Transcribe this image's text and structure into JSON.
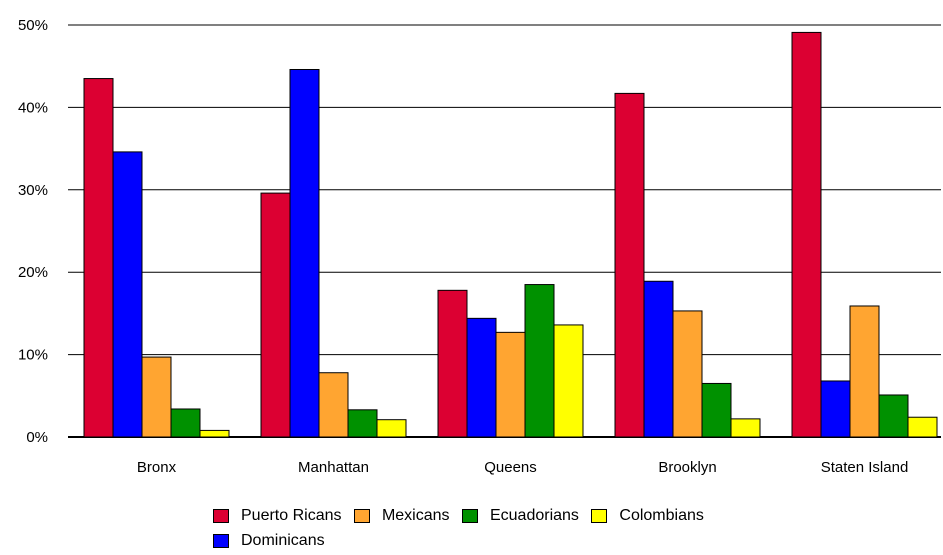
{
  "chart_data": {
    "type": "bar",
    "categories": [
      "Bronx",
      "Manhattan",
      "Queens",
      "Brooklyn",
      "Staten Island"
    ],
    "series": [
      {
        "name": "Puerto Ricans",
        "color": "#dc0032",
        "values": [
          43.5,
          29.6,
          17.8,
          41.7,
          49.1
        ]
      },
      {
        "name": "Dominicans",
        "color": "#0000ff",
        "values": [
          34.6,
          44.6,
          14.4,
          18.9,
          6.8
        ]
      },
      {
        "name": "Mexicans",
        "color": "#ffa531",
        "values": [
          9.7,
          7.8,
          12.7,
          15.3,
          15.9
        ]
      },
      {
        "name": "Ecuadorians",
        "color": "#009100",
        "values": [
          3.4,
          3.3,
          18.5,
          6.5,
          5.1
        ]
      },
      {
        "name": "Colombians",
        "color": "#ffff00",
        "values": [
          0.8,
          2.1,
          13.6,
          2.2,
          2.4
        ]
      }
    ],
    "ylim": [
      0,
      50
    ],
    "yticks": [
      0,
      10,
      20,
      30,
      40,
      50
    ],
    "ytick_labels": [
      "0%",
      "10%",
      "20%",
      "30%",
      "40%",
      "50%"
    ],
    "grid": true,
    "legend_position": "bottom"
  },
  "legend_rows": [
    [
      "Puerto Ricans",
      "Mexicans",
      "Ecuadorians",
      "Colombians"
    ],
    [
      "Dominicans"
    ]
  ]
}
